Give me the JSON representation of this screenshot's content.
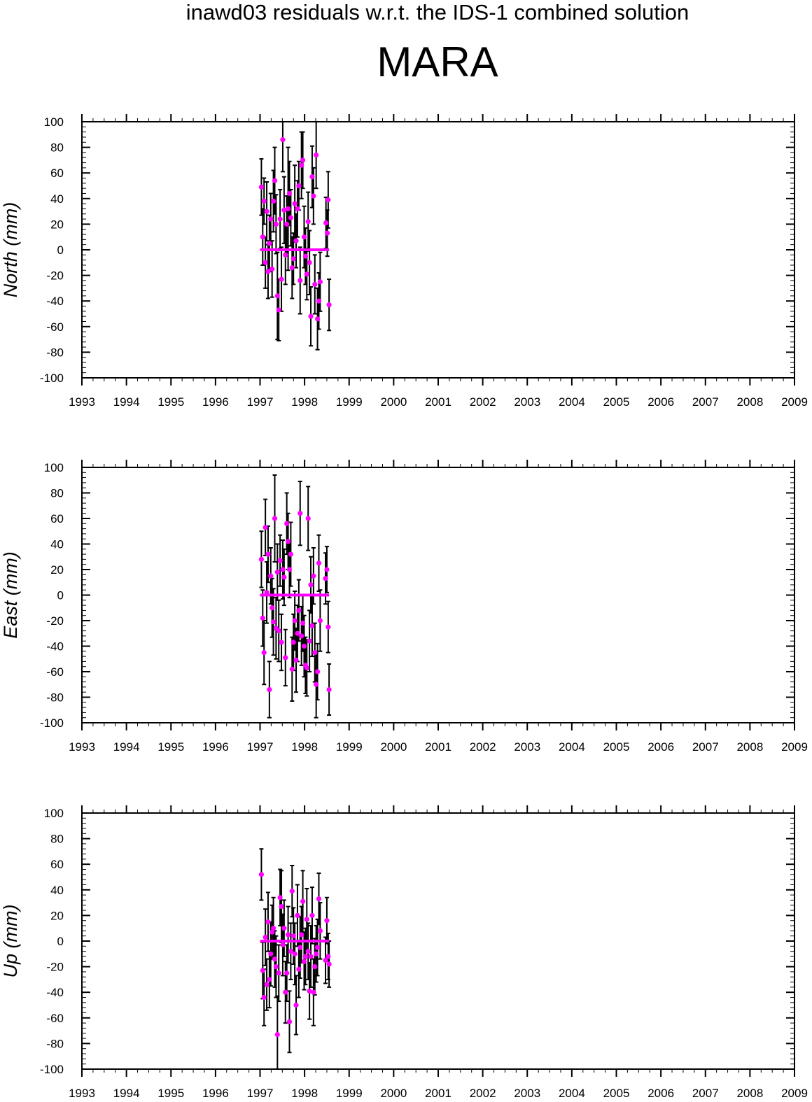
{
  "suptitle": "inawd03 residuals w.r.t. the IDS-1 combined solution",
  "title": "MARA",
  "colors": {
    "points": "#ff00ff",
    "errorbars": "#000000",
    "axes": "#000000",
    "background": "#ffffff"
  },
  "chart_data": [
    {
      "type": "scatter",
      "ylabel": "North (mm)",
      "xlim": [
        1993,
        2009
      ],
      "ylim": [
        -100,
        100
      ],
      "xticks": [
        "1993",
        "1994",
        "1995",
        "1996",
        "1997",
        "1998",
        "1999",
        "2000",
        "2001",
        "2002",
        "2003",
        "2004",
        "2005",
        "2006",
        "2007",
        "2008",
        "2009"
      ],
      "yticks": [
        "-100",
        "-80",
        "-60",
        "-40",
        "-20",
        "0",
        "20",
        "40",
        "60",
        "80",
        "100"
      ],
      "grid": false,
      "mean_line": {
        "x": [
          1997.0,
          1998.55
        ],
        "y": 0
      },
      "points": [
        {
          "x": 1997.03,
          "y": 49,
          "err": 22
        },
        {
          "x": 1997.06,
          "y": 10,
          "err": 22
        },
        {
          "x": 1997.09,
          "y": 38,
          "err": 18
        },
        {
          "x": 1997.12,
          "y": -10,
          "err": 20
        },
        {
          "x": 1997.15,
          "y": 30,
          "err": 23
        },
        {
          "x": 1997.18,
          "y": -17,
          "err": 21
        },
        {
          "x": 1997.21,
          "y": 5,
          "err": 22
        },
        {
          "x": 1997.24,
          "y": 24,
          "err": 20
        },
        {
          "x": 1997.27,
          "y": -15,
          "err": 22
        },
        {
          "x": 1997.3,
          "y": 38,
          "err": 24
        },
        {
          "x": 1997.33,
          "y": 54,
          "err": 26
        },
        {
          "x": 1997.36,
          "y": 20,
          "err": 23
        },
        {
          "x": 1997.39,
          "y": -36,
          "err": 34
        },
        {
          "x": 1997.42,
          "y": -47,
          "err": 24
        },
        {
          "x": 1997.45,
          "y": 24,
          "err": 23
        },
        {
          "x": 1997.48,
          "y": -23,
          "err": 25
        },
        {
          "x": 1997.51,
          "y": 86,
          "err": 25
        },
        {
          "x": 1997.54,
          "y": 31,
          "err": 26
        },
        {
          "x": 1997.57,
          "y": -4,
          "err": 23
        },
        {
          "x": 1997.6,
          "y": 20,
          "err": 22
        },
        {
          "x": 1997.63,
          "y": 32,
          "err": 48
        },
        {
          "x": 1997.66,
          "y": 44,
          "err": 25
        },
        {
          "x": 1997.69,
          "y": 25,
          "err": 22
        },
        {
          "x": 1997.72,
          "y": -14,
          "err": 24
        },
        {
          "x": 1997.75,
          "y": -7,
          "err": 20
        },
        {
          "x": 1997.78,
          "y": 36,
          "err": 30
        },
        {
          "x": 1997.81,
          "y": 7,
          "err": 21
        },
        {
          "x": 1997.84,
          "y": 32,
          "err": 22
        },
        {
          "x": 1997.87,
          "y": 50,
          "err": 19
        },
        {
          "x": 1997.9,
          "y": -24,
          "err": 26
        },
        {
          "x": 1997.93,
          "y": 66,
          "err": 26
        },
        {
          "x": 1997.96,
          "y": 70,
          "err": 22
        },
        {
          "x": 1997.99,
          "y": 10,
          "err": 24
        },
        {
          "x": 1998.02,
          "y": -5,
          "err": 22
        },
        {
          "x": 1998.05,
          "y": -19,
          "err": 20
        },
        {
          "x": 1998.08,
          "y": 22,
          "err": 23
        },
        {
          "x": 1998.11,
          "y": -10,
          "err": 25
        },
        {
          "x": 1998.14,
          "y": -52,
          "err": 23
        },
        {
          "x": 1998.17,
          "y": 57,
          "err": 24
        },
        {
          "x": 1998.2,
          "y": 42,
          "err": 22
        },
        {
          "x": 1998.23,
          "y": -27,
          "err": 23
        },
        {
          "x": 1998.26,
          "y": 74,
          "err": 26
        },
        {
          "x": 1998.29,
          "y": -54,
          "err": 24
        },
        {
          "x": 1998.32,
          "y": -40,
          "err": 22
        },
        {
          "x": 1998.35,
          "y": -25,
          "err": 23
        },
        {
          "x": 1998.48,
          "y": 21,
          "err": 20
        },
        {
          "x": 1998.51,
          "y": 13,
          "err": 18
        },
        {
          "x": 1998.53,
          "y": 39,
          "err": 22
        },
        {
          "x": 1998.55,
          "y": -43,
          "err": 20
        }
      ]
    },
    {
      "type": "scatter",
      "ylabel": "East (mm)",
      "xlim": [
        1993,
        2009
      ],
      "ylim": [
        -100,
        100
      ],
      "xticks": [
        "1993",
        "1994",
        "1995",
        "1996",
        "1997",
        "1998",
        "1999",
        "2000",
        "2001",
        "2002",
        "2003",
        "2004",
        "2005",
        "2006",
        "2007",
        "2008",
        "2009"
      ],
      "yticks": [
        "-100",
        "-80",
        "-60",
        "-40",
        "-20",
        "0",
        "20",
        "40",
        "60",
        "80",
        "100"
      ],
      "grid": false,
      "mean_line": {
        "x": [
          1997.0,
          1998.55
        ],
        "y": 0
      },
      "points": [
        {
          "x": 1997.03,
          "y": 28,
          "err": 22
        },
        {
          "x": 1997.06,
          "y": -18,
          "err": 22
        },
        {
          "x": 1997.09,
          "y": -45,
          "err": 25
        },
        {
          "x": 1997.12,
          "y": 53,
          "err": 22
        },
        {
          "x": 1997.15,
          "y": 2,
          "err": 24
        },
        {
          "x": 1997.18,
          "y": 32,
          "err": 22
        },
        {
          "x": 1997.21,
          "y": -74,
          "err": 22
        },
        {
          "x": 1997.24,
          "y": 15,
          "err": 22
        },
        {
          "x": 1997.27,
          "y": -10,
          "err": 23
        },
        {
          "x": 1997.3,
          "y": -21,
          "err": 26
        },
        {
          "x": 1997.33,
          "y": 60,
          "err": 34
        },
        {
          "x": 1997.36,
          "y": -26,
          "err": 24
        },
        {
          "x": 1997.39,
          "y": 18,
          "err": 22
        },
        {
          "x": 1997.42,
          "y": -28,
          "err": 24
        },
        {
          "x": 1997.45,
          "y": 27,
          "err": 20
        },
        {
          "x": 1997.48,
          "y": -37,
          "err": 22
        },
        {
          "x": 1997.51,
          "y": 20,
          "err": 23
        },
        {
          "x": 1997.54,
          "y": 14,
          "err": 22
        },
        {
          "x": 1997.57,
          "y": -49,
          "err": 22
        },
        {
          "x": 1997.6,
          "y": 56,
          "err": 24
        },
        {
          "x": 1997.63,
          "y": 42,
          "err": 22
        },
        {
          "x": 1997.66,
          "y": 20,
          "err": 22
        },
        {
          "x": 1997.69,
          "y": 32,
          "err": 25
        },
        {
          "x": 1997.72,
          "y": -58,
          "err": 25
        },
        {
          "x": 1997.75,
          "y": -37,
          "err": 22
        },
        {
          "x": 1997.78,
          "y": -20,
          "err": 23
        },
        {
          "x": 1997.81,
          "y": -51,
          "err": 25
        },
        {
          "x": 1997.84,
          "y": -30,
          "err": 22
        },
        {
          "x": 1997.87,
          "y": -12,
          "err": 24
        },
        {
          "x": 1997.9,
          "y": 64,
          "err": 25
        },
        {
          "x": 1997.93,
          "y": -32,
          "err": 23
        },
        {
          "x": 1997.96,
          "y": -22,
          "err": 22
        },
        {
          "x": 1997.99,
          "y": -40,
          "err": 24
        },
        {
          "x": 1998.02,
          "y": -55,
          "err": 22
        },
        {
          "x": 1998.05,
          "y": -57,
          "err": 22
        },
        {
          "x": 1998.08,
          "y": 60,
          "err": 25
        },
        {
          "x": 1998.11,
          "y": -36,
          "err": 24
        },
        {
          "x": 1998.14,
          "y": 8,
          "err": 22
        },
        {
          "x": 1998.17,
          "y": -24,
          "err": 24
        },
        {
          "x": 1998.2,
          "y": 15,
          "err": 22
        },
        {
          "x": 1998.23,
          "y": -45,
          "err": 23
        },
        {
          "x": 1998.26,
          "y": -70,
          "err": 26
        },
        {
          "x": 1998.29,
          "y": -60,
          "err": 22
        },
        {
          "x": 1998.32,
          "y": 25,
          "err": 22
        },
        {
          "x": 1998.35,
          "y": -20,
          "err": 24
        },
        {
          "x": 1998.47,
          "y": 13,
          "err": 20
        },
        {
          "x": 1998.5,
          "y": 20,
          "err": 18
        },
        {
          "x": 1998.53,
          "y": -25,
          "err": 20
        },
        {
          "x": 1998.55,
          "y": -74,
          "err": 20
        }
      ]
    },
    {
      "type": "scatter",
      "ylabel": "Up (mm)",
      "xlim": [
        1993,
        2009
      ],
      "ylim": [
        -100,
        100
      ],
      "xticks": [
        "1993",
        "1994",
        "1995",
        "1996",
        "1997",
        "1998",
        "1999",
        "2000",
        "2001",
        "2002",
        "2003",
        "2004",
        "2005",
        "2006",
        "2007",
        "2008",
        "2009"
      ],
      "yticks": [
        "-100",
        "-80",
        "-60",
        "-40",
        "-20",
        "0",
        "20",
        "40",
        "60",
        "80",
        "100"
      ],
      "grid": false,
      "mean_line": {
        "x": [
          1997.0,
          1998.55
        ],
        "y": 0
      },
      "points": [
        {
          "x": 1997.03,
          "y": 52,
          "err": 20
        },
        {
          "x": 1997.06,
          "y": -23,
          "err": 22
        },
        {
          "x": 1997.09,
          "y": -44,
          "err": 22
        },
        {
          "x": 1997.12,
          "y": 3,
          "err": 22
        },
        {
          "x": 1997.15,
          "y": -34,
          "err": 20
        },
        {
          "x": 1997.18,
          "y": 15,
          "err": 23
        },
        {
          "x": 1997.21,
          "y": -30,
          "err": 22
        },
        {
          "x": 1997.24,
          "y": -10,
          "err": 25
        },
        {
          "x": 1997.27,
          "y": 7,
          "err": 21
        },
        {
          "x": 1997.3,
          "y": 10,
          "err": 24
        },
        {
          "x": 1997.33,
          "y": -14,
          "err": 22
        },
        {
          "x": 1997.36,
          "y": -20,
          "err": 24
        },
        {
          "x": 1997.39,
          "y": -73,
          "err": 30
        },
        {
          "x": 1997.42,
          "y": -25,
          "err": 22
        },
        {
          "x": 1997.45,
          "y": 34,
          "err": 22
        },
        {
          "x": 1997.48,
          "y": 27,
          "err": 28
        },
        {
          "x": 1997.51,
          "y": -3,
          "err": 24
        },
        {
          "x": 1997.54,
          "y": 10,
          "err": 22
        },
        {
          "x": 1997.57,
          "y": -40,
          "err": 24
        },
        {
          "x": 1997.6,
          "y": -25,
          "err": 22
        },
        {
          "x": 1997.63,
          "y": 5,
          "err": 22
        },
        {
          "x": 1997.66,
          "y": -63,
          "err": 24
        },
        {
          "x": 1997.69,
          "y": -8,
          "err": 22
        },
        {
          "x": 1997.72,
          "y": 39,
          "err": 20
        },
        {
          "x": 1997.75,
          "y": 4,
          "err": 22
        },
        {
          "x": 1997.78,
          "y": -10,
          "err": 24
        },
        {
          "x": 1997.81,
          "y": -50,
          "err": 23
        },
        {
          "x": 1997.84,
          "y": 20,
          "err": 24
        },
        {
          "x": 1997.87,
          "y": -22,
          "err": 22
        },
        {
          "x": 1997.9,
          "y": -5,
          "err": 24
        },
        {
          "x": 1997.93,
          "y": 5,
          "err": 22
        },
        {
          "x": 1997.96,
          "y": 31,
          "err": 24
        },
        {
          "x": 1997.99,
          "y": -16,
          "err": 22
        },
        {
          "x": 1998.02,
          "y": -12,
          "err": 22
        },
        {
          "x": 1998.05,
          "y": 17,
          "err": 24
        },
        {
          "x": 1998.08,
          "y": -8,
          "err": 22
        },
        {
          "x": 1998.11,
          "y": -39,
          "err": 22
        },
        {
          "x": 1998.14,
          "y": -12,
          "err": 24
        },
        {
          "x": 1998.17,
          "y": 20,
          "err": 22
        },
        {
          "x": 1998.2,
          "y": -40,
          "err": 26
        },
        {
          "x": 1998.23,
          "y": -20,
          "err": 22
        },
        {
          "x": 1998.26,
          "y": -10,
          "err": 22
        },
        {
          "x": 1998.29,
          "y": -5,
          "err": 22
        },
        {
          "x": 1998.32,
          "y": 33,
          "err": 20
        },
        {
          "x": 1998.35,
          "y": 8,
          "err": 22
        },
        {
          "x": 1998.47,
          "y": -15,
          "err": 18
        },
        {
          "x": 1998.5,
          "y": 16,
          "err": 18
        },
        {
          "x": 1998.53,
          "y": -12,
          "err": 18
        },
        {
          "x": 1998.55,
          "y": -18,
          "err": 18
        }
      ]
    }
  ]
}
